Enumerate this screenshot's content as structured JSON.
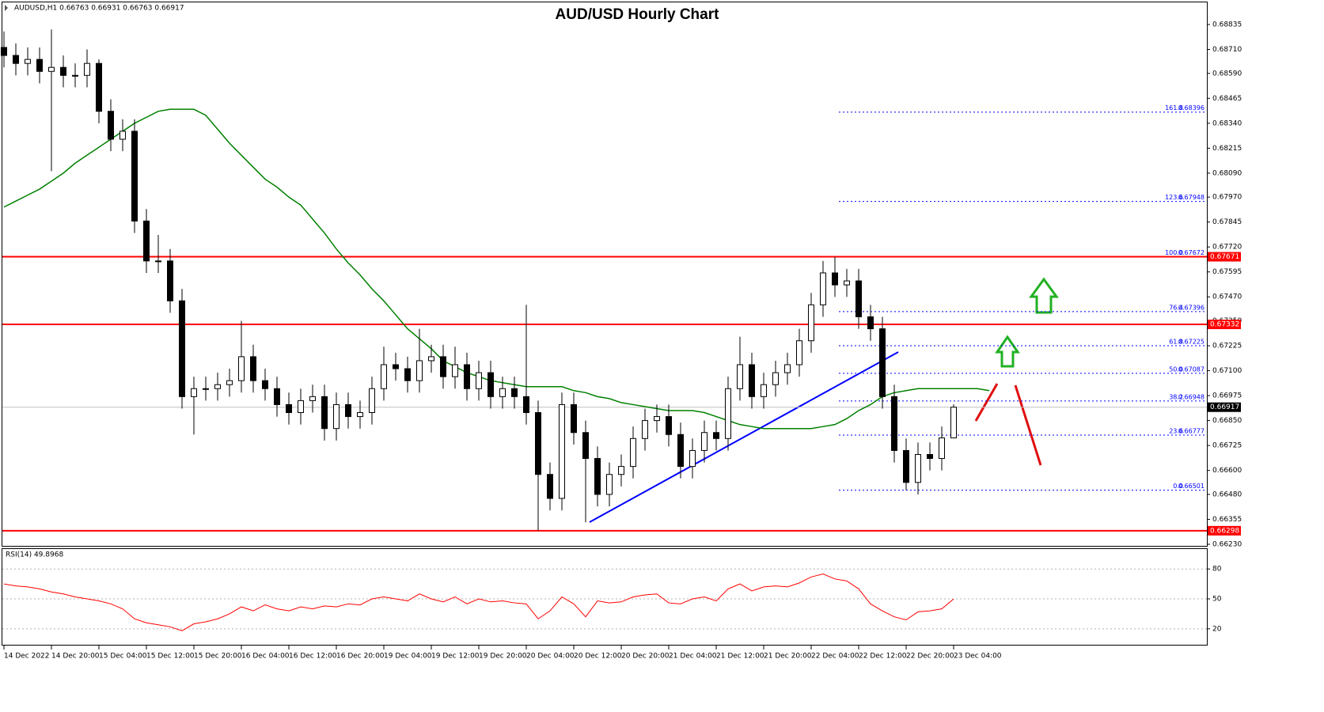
{
  "chart_data": {
    "type": "candlestick",
    "title": "AUD/USD Hourly Chart",
    "header": "AUDUSD,H1  0.66763 0.66931 0.66763 0.66917",
    "categories": [
      "14 Dec 2022",
      null,
      null,
      null,
      "14 Dec 20:00",
      null,
      null,
      null,
      "15 Dec 04:00",
      null,
      null,
      null,
      "15 Dec 12:00",
      null,
      null,
      null,
      "15 Dec 20:00",
      null,
      null,
      null,
      "16 Dec 04:00",
      null,
      null,
      null,
      "16 Dec 12:00",
      null,
      null,
      null,
      "16 Dec 20:00",
      null,
      null,
      null,
      "19 Dec 04:00",
      null,
      null,
      null,
      "19 Dec 12:00",
      null,
      null,
      null,
      "19 Dec 20:00",
      null,
      null,
      null,
      "20 Dec 04:00",
      null,
      null,
      null,
      "20 Dec 12:00",
      null,
      null,
      null,
      "20 Dec 20:00",
      null,
      null,
      null,
      "21 Dec 04:00",
      null,
      null,
      null,
      "21 Dec 12:00",
      null,
      null,
      null,
      "21 Dec 20:00",
      null,
      null,
      null,
      "22 Dec 04:00",
      null,
      null,
      null,
      "22 Dec 12:00",
      null,
      null,
      null,
      "22 Dec 20:00",
      null,
      null,
      null,
      "23 Dec 04:00",
      null,
      null,
      null
    ],
    "open": [
      0.6872,
      0.6868,
      0.6864,
      0.6866,
      0.686,
      0.6862,
      0.6858,
      0.6858,
      0.6864,
      0.684,
      0.6826,
      0.683,
      0.6785,
      0.6765,
      0.6765,
      0.6745,
      0.6697,
      0.6701,
      0.6701,
      0.6703,
      0.6705,
      0.6717,
      0.6705,
      0.6701,
      0.6693,
      0.6689,
      0.6695,
      0.6697,
      0.6681,
      0.6693,
      0.6687,
      0.6689,
      0.6701,
      0.6713,
      0.6711,
      0.6705,
      0.6715,
      0.6717,
      0.6707,
      0.6713,
      0.6701,
      0.6709,
      0.6697,
      0.6701,
      0.6697,
      0.6689,
      0.6658,
      0.6646,
      0.6693,
      0.6679,
      0.6666,
      0.6648,
      0.6658,
      0.6662,
      0.6676,
      0.6685,
      0.6687,
      0.6678,
      0.6662,
      0.667,
      0.6679,
      0.6676,
      0.6701,
      0.6713,
      0.6697,
      0.6703,
      0.6709,
      0.6713,
      0.6725,
      0.6743,
      0.6759,
      0.6753,
      0.6755,
      0.6737,
      0.6731,
      0.6697,
      0.667,
      0.6654,
      0.6668,
      0.6666,
      0.66763,
      null,
      null,
      null
    ],
    "high": [
      0.688,
      0.6874,
      0.6872,
      0.6872,
      0.6881,
      0.6868,
      0.6864,
      0.6871,
      0.6866,
      0.6846,
      0.6836,
      0.6836,
      0.6791,
      0.6778,
      0.6771,
      0.6751,
      0.6707,
      0.6707,
      0.6709,
      0.6711,
      0.6735,
      0.6723,
      0.6711,
      0.6707,
      0.6699,
      0.6701,
      0.6703,
      0.6703,
      0.6699,
      0.6699,
      0.6695,
      0.6707,
      0.6722,
      0.6719,
      0.6717,
      0.6731,
      0.6723,
      0.6723,
      0.6722,
      0.6719,
      0.6715,
      0.6715,
      0.6707,
      0.6707,
      0.6743,
      0.6695,
      0.6664,
      0.6699,
      0.6699,
      0.6685,
      0.6672,
      0.6664,
      0.6668,
      0.6682,
      0.6691,
      0.6693,
      0.6693,
      0.6684,
      0.6676,
      0.6685,
      0.6685,
      0.6707,
      0.6727,
      0.6719,
      0.6709,
      0.6715,
      0.6719,
      0.6731,
      0.6749,
      0.6765,
      0.6767,
      0.6761,
      0.6761,
      0.6743,
      0.6737,
      0.6703,
      0.6676,
      0.6674,
      0.6674,
      0.6682,
      0.66931,
      null,
      null,
      null
    ],
    "low": [
      0.6862,
      0.6858,
      0.6858,
      0.6854,
      0.681,
      0.6852,
      0.6852,
      0.6852,
      0.6834,
      0.682,
      0.682,
      0.6779,
      0.6759,
      0.6759,
      0.6739,
      0.6691,
      0.6678,
      0.6695,
      0.6695,
      0.6697,
      0.6699,
      0.6699,
      0.6695,
      0.6687,
      0.6683,
      0.6683,
      0.6689,
      0.6675,
      0.6675,
      0.6681,
      0.6681,
      0.6683,
      0.6695,
      0.6705,
      0.6699,
      0.6699,
      0.6709,
      0.6701,
      0.6701,
      0.6695,
      0.6695,
      0.6691,
      0.6691,
      0.6691,
      0.6683,
      0.66298,
      0.664,
      0.664,
      0.6673,
      0.6634,
      0.6642,
      0.6642,
      0.6652,
      0.6656,
      0.667,
      0.6679,
      0.6672,
      0.6656,
      0.6656,
      0.6664,
      0.667,
      0.667,
      0.6695,
      0.6691,
      0.6691,
      0.6697,
      0.6703,
      0.6707,
      0.6719,
      0.6737,
      0.6747,
      0.6747,
      0.6731,
      0.6725,
      0.6691,
      0.6664,
      0.66501,
      0.6648,
      0.666,
      0.666,
      0.66763,
      null,
      null,
      null
    ],
    "close": [
      0.6868,
      0.6864,
      0.6866,
      0.686,
      0.6862,
      0.6858,
      0.6858,
      0.6864,
      0.684,
      0.6826,
      0.683,
      0.6785,
      0.6765,
      0.6765,
      0.6745,
      0.6697,
      0.6701,
      0.6701,
      0.6703,
      0.6705,
      0.6717,
      0.6705,
      0.6701,
      0.6693,
      0.6689,
      0.6695,
      0.6697,
      0.6681,
      0.6693,
      0.6687,
      0.6689,
      0.6701,
      0.6713,
      0.6711,
      0.6705,
      0.6715,
      0.6717,
      0.6707,
      0.6713,
      0.6701,
      0.6709,
      0.6697,
      0.6701,
      0.6697,
      0.6689,
      0.6658,
      0.6646,
      0.6693,
      0.6679,
      0.6666,
      0.6648,
      0.6658,
      0.6662,
      0.6676,
      0.6685,
      0.6687,
      0.6678,
      0.6662,
      0.667,
      0.6679,
      0.6676,
      0.6701,
      0.6713,
      0.6697,
      0.6703,
      0.6709,
      0.6713,
      0.6725,
      0.6743,
      0.6759,
      0.6753,
      0.6755,
      0.6737,
      0.6731,
      0.6697,
      0.667,
      0.6654,
      0.6668,
      0.6666,
      0.66763,
      0.66917,
      null,
      null,
      null
    ],
    "up_color": "#ffffff",
    "down_color": "#000000",
    "ma": {
      "color": "#008000",
      "values": [
        0.6792,
        0.6795,
        0.6798,
        0.6801,
        0.6805,
        0.6809,
        0.6814,
        0.6818,
        0.6822,
        0.6826,
        0.683,
        0.6834,
        0.6837,
        0.684,
        0.6841,
        0.6841,
        0.6841,
        0.6838,
        0.6831,
        0.6824,
        0.6818,
        0.6812,
        0.6806,
        0.6802,
        0.6797,
        0.6793,
        0.6786,
        0.6779,
        0.6771,
        0.6764,
        0.6758,
        0.6751,
        0.6745,
        0.6738,
        0.6731,
        0.6726,
        0.6721,
        0.6715,
        0.6712,
        0.6709,
        0.6707,
        0.6705,
        0.6704,
        0.6703,
        0.6702,
        0.6702,
        0.6702,
        0.6702,
        0.67,
        0.6699,
        0.6697,
        0.6696,
        0.6694,
        0.6693,
        0.6692,
        0.6691,
        0.669,
        0.669,
        0.669,
        0.6689,
        0.6687,
        0.6685,
        0.6683,
        0.6682,
        0.6681,
        0.6681,
        0.6681,
        0.6681,
        0.6681,
        0.6682,
        0.6683,
        0.6686,
        0.669,
        0.6693,
        0.6697,
        0.6699,
        0.67,
        0.6701,
        0.6701,
        0.6701,
        0.6701,
        0.6701,
        0.6701,
        0.67
      ]
    },
    "levels": [
      {
        "value": 0.67671,
        "color": "#ff0000"
      },
      {
        "value": 0.67332,
        "color": "#ff0000"
      },
      {
        "value": 0.66298,
        "color": "#ff0000"
      }
    ],
    "current": {
      "value": 0.66917,
      "color": "#c0c0c0"
    },
    "fib": [
      {
        "level": "161.8",
        "value": 0.68396
      },
      {
        "level": "123.6",
        "value": 0.67948
      },
      {
        "level": "100.0",
        "value": 0.67672
      },
      {
        "level": "76.4",
        "value": 0.67396
      },
      {
        "level": "61.8",
        "value": 0.67225
      },
      {
        "level": "50.0",
        "value": 0.67087
      },
      {
        "level": "38.2",
        "value": 0.66948
      },
      {
        "level": "23.6",
        "value": 0.66777
      },
      {
        "level": "0.0",
        "value": 0.66501
      }
    ],
    "ylim": [
      0.66222,
      0.68938
    ],
    "yticks": [
      0.68835,
      {
        "value": 0.6871,
        "label": "0.68710"
      },
      {
        "value": 0.6859,
        "label": "0.68590"
      },
      0.68465,
      {
        "value": 0.6834,
        "label": "0.68340"
      },
      0.68215,
      {
        "value": 0.6809,
        "label": "0.68090"
      },
      {
        "value": 0.6797,
        "label": "0.67970"
      },
      0.67845,
      {
        "value": 0.6772,
        "label": "0.67720"
      },
      0.67595,
      {
        "value": 0.6747,
        "label": "0.67470"
      },
      {
        "value": 0.6735,
        "label": "0.67350"
      },
      0.67225,
      {
        "value": 0.671,
        "label": "0.67100"
      },
      0.66975,
      {
        "value": 0.6685,
        "label": "0.66850"
      },
      0.66725,
      {
        "value": 0.666,
        "label": "0.66600"
      },
      {
        "value": 0.6648,
        "label": "0.66480"
      },
      0.66355,
      {
        "value": 0.6623,
        "label": "0.66230"
      }
    ],
    "rsi": {
      "label": "RSI(14) 49.8968",
      "color": "#ff0000",
      "ylim": [
        4,
        100
      ],
      "yticks": [
        80,
        50,
        20
      ],
      "values": [
        65,
        63,
        62,
        60,
        57,
        55,
        52,
        50,
        48,
        45,
        40,
        30,
        26,
        24,
        22,
        18,
        25,
        27,
        30,
        35,
        42,
        38,
        44,
        40,
        38,
        42,
        40,
        43,
        42,
        45,
        44,
        50,
        52,
        50,
        48,
        55,
        50,
        47,
        52,
        45,
        50,
        47,
        48,
        46,
        45,
        30,
        38,
        52,
        45,
        32,
        48,
        46,
        47,
        52,
        54,
        55,
        46,
        45,
        50,
        52,
        48,
        60,
        65,
        58,
        62,
        63,
        62,
        66,
        72,
        75,
        70,
        68,
        60,
        45,
        38,
        32,
        29,
        37,
        38,
        40,
        49.8968,
        null,
        null,
        null
      ]
    }
  }
}
